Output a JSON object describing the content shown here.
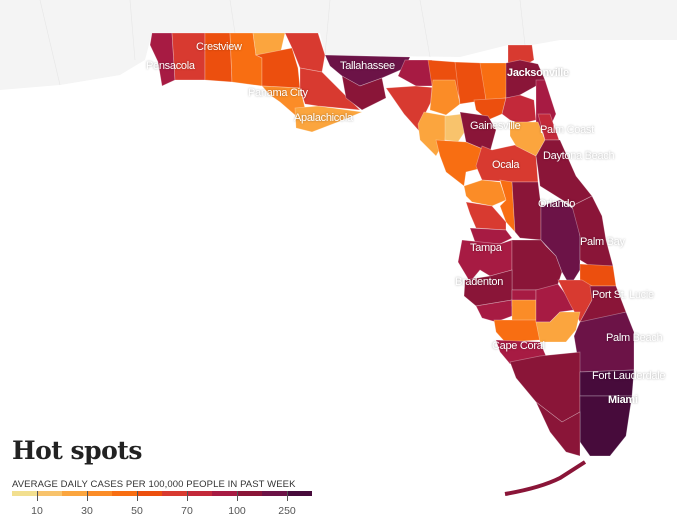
{
  "title": "Hot spots",
  "legend": {
    "label": "AVERAGE DAILY CASES PER 100,000 PEOPLE IN PAST WEEK",
    "colors": [
      "#f2df8f",
      "#f8c36c",
      "#fba53e",
      "#fb8c27",
      "#f86e12",
      "#ec4f0e",
      "#d83a30",
      "#c3293a",
      "#a71b43",
      "#8a1538",
      "#6c1347",
      "#470b3b"
    ],
    "ticks": [
      "10",
      "30",
      "50",
      "70",
      "100",
      "250"
    ]
  },
  "cities": {
    "pensacola": "Pensacola",
    "crestview": "Crestview",
    "panama_city": "Panama City",
    "apalachicola": "Apalachicola",
    "tallahassee": "Tallahassee",
    "jacksonville": "Jacksonville",
    "gainesville": "Gainesville",
    "palm_coast": "Palm Coast",
    "daytona_beach": "Daytona Beach",
    "ocala": "Ocala",
    "orlando": "Orlando",
    "palm_bay": "Palm Bay",
    "tampa": "Tampa",
    "bradenton": "Bradenton",
    "port_st_lucie": "Port St. Lucie",
    "cape_coral": "Cape Coral",
    "palm_beach": "Palm Beach",
    "fort_lauderdale": "Fort Lauderdale",
    "miami": "Miami"
  }
}
